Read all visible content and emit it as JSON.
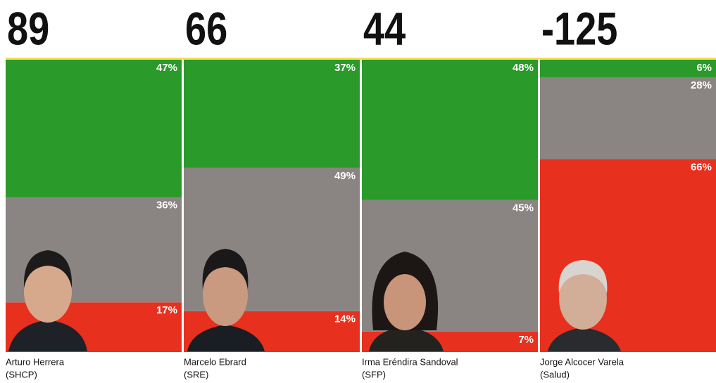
{
  "chart_data": {
    "type": "bar",
    "stacked": true,
    "categories": [
      "Arturo Herrera",
      "Marcelo Ebrard",
      "Irma Eréndira Sandoval",
      "Jorge Alcocer Varela"
    ],
    "departments": [
      "(SHCP)",
      "(SRE)",
      "(SFP)",
      "(Salud)"
    ],
    "scores": [
      89,
      66,
      44,
      -125
    ],
    "ylim": [
      0,
      100
    ],
    "series": [
      {
        "color": "#2a9a2a",
        "values": [
          47,
          37,
          48,
          6
        ],
        "value_labels": [
          "47%",
          "37%",
          "48%",
          "6%"
        ]
      },
      {
        "color": "#8a8482",
        "values": [
          36,
          49,
          45,
          28
        ],
        "value_labels": [
          "36%",
          "49%",
          "45%",
          "28%"
        ]
      },
      {
        "color": "#e8301e",
        "values": [
          17,
          14,
          7,
          66
        ],
        "value_labels": [
          "17%",
          "14%",
          "7%",
          "66%"
        ]
      }
    ]
  }
}
